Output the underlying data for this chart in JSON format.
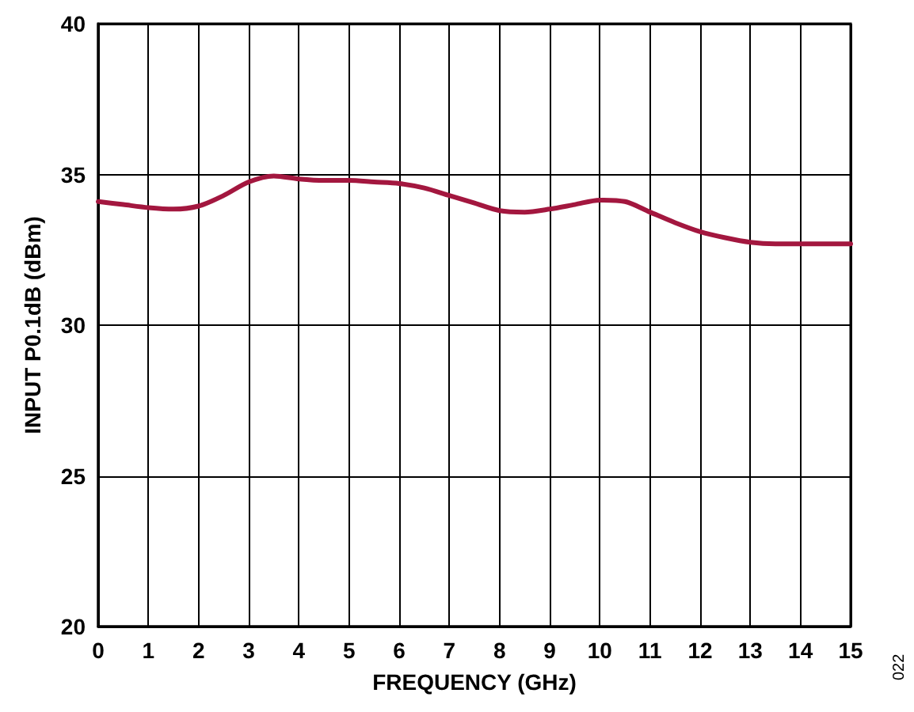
{
  "chart_data": {
    "type": "line",
    "xlabel": "FREQUENCY (GHz)",
    "ylabel": "INPUT P0.1dB (dBm)",
    "annotations": [
      "022"
    ],
    "x": [
      0,
      0.5,
      1,
      1.5,
      2,
      2.5,
      3,
      3.5,
      4,
      4.5,
      5,
      5.5,
      6,
      6.5,
      7,
      7.5,
      8,
      8.5,
      9,
      9.5,
      10,
      10.5,
      11,
      11.5,
      12,
      12.5,
      13,
      13.5,
      14,
      14.5,
      15
    ],
    "series": [
      {
        "color": "#a3173f",
        "values": [
          34.1,
          34.0,
          33.9,
          33.85,
          33.95,
          34.3,
          34.75,
          34.95,
          34.85,
          34.8,
          34.8,
          34.75,
          34.7,
          34.55,
          34.3,
          34.05,
          33.8,
          33.75,
          33.85,
          34.0,
          34.15,
          34.1,
          33.75,
          33.4,
          33.1,
          32.9,
          32.75,
          32.7,
          32.7,
          32.7,
          32.7
        ]
      }
    ],
    "xlim": [
      0,
      15
    ],
    "xticks": [
      0,
      1,
      2,
      3,
      4,
      5,
      6,
      7,
      8,
      9,
      10,
      11,
      12,
      13,
      14,
      15
    ],
    "ylim": [
      20,
      40
    ],
    "yticks": [
      20,
      25,
      30,
      35,
      40
    ],
    "grid": true,
    "marker": "none",
    "line_style": "solid"
  }
}
